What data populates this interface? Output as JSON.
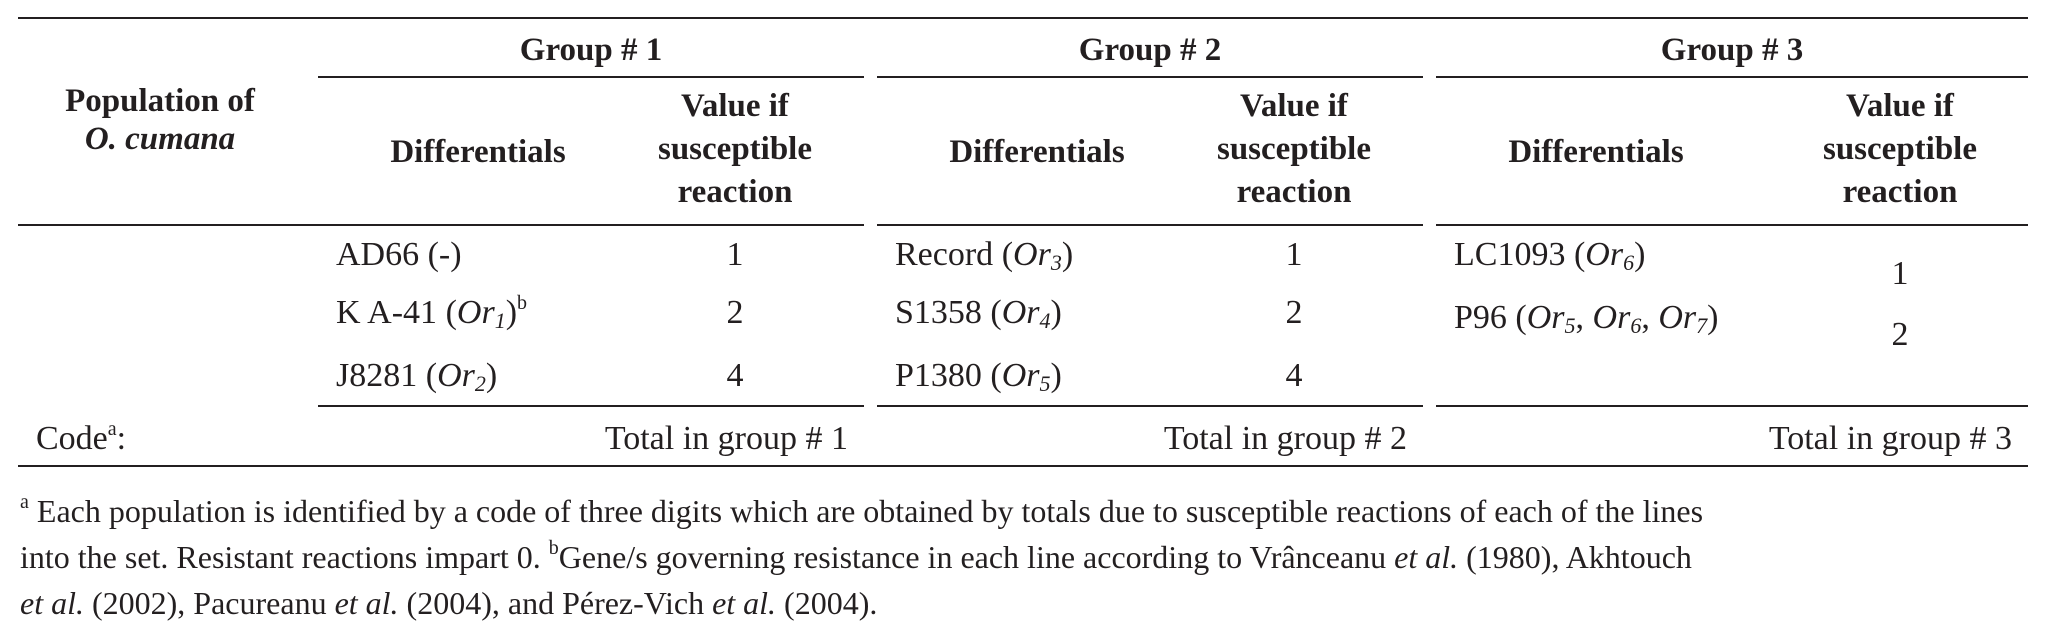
{
  "table": {
    "row_header": {
      "line1": "Population of",
      "line2": "O. cumana"
    },
    "groups": [
      {
        "title": "Group # 1",
        "col_differentials": "Differentials",
        "col_value": [
          "Value if",
          "susceptible",
          "reaction"
        ],
        "rows": [
          {
            "name": "AD66",
            "gene_prefix": " (-)",
            "gene": "",
            "value": "1"
          },
          {
            "name": "K A-41",
            "gene": "Or",
            "gene_sub": "1",
            "gene_sup": "b",
            "value": "2"
          },
          {
            "name": "J8281",
            "gene": "Or",
            "gene_sub": "2",
            "value": "4"
          }
        ],
        "total_label": "Total in group # 1"
      },
      {
        "title": "Group # 2",
        "col_differentials": "Differentials",
        "col_value": [
          "Value if",
          "susceptible",
          "reaction"
        ],
        "rows": [
          {
            "name": "Record",
            "gene": "Or",
            "gene_sub": "3",
            "value": "1"
          },
          {
            "name": "S1358",
            "gene": "Or",
            "gene_sub": "4",
            "value": "2"
          },
          {
            "name": "P1380",
            "gene": "Or",
            "gene_sub": "5",
            "value": "4"
          }
        ],
        "total_label": "Total in group # 2"
      },
      {
        "title": "Group # 3",
        "col_differentials": "Differentials",
        "col_value": [
          "Value if",
          "susceptible",
          "reaction"
        ],
        "rows": [
          {
            "name": "LC1093",
            "gene": "Or",
            "gene_sub": "6",
            "value": "1"
          },
          {
            "name": "P96",
            "genes": [
              {
                "gene": "Or",
                "gene_sub": "5"
              },
              {
                "gene": "Or",
                "gene_sub": "6"
              },
              {
                "gene": "Or",
                "gene_sub": "7"
              }
            ],
            "value": "2"
          }
        ],
        "total_label": "Total in group # 3"
      }
    ],
    "code_label": "Code",
    "code_sup": "a",
    "code_colon": ":"
  },
  "footnote": {
    "a_mark": "a",
    "a_text_1": " Each population is identified by a code of three digits which are obtained by totals due to susceptible reactions of each of the lines",
    "a_text_2": "into the set. Resistant reactions impart 0. ",
    "b_mark": "b",
    "b_text_1": "Gene/s governing resistance in each line according to Vrânceanu ",
    "etal": "et al.",
    "b_year_1": " (1980), Akhtouch",
    "b_year_2": " (2002), Pacureanu ",
    "b_year_3": " (2004), and Pérez-Vich ",
    "b_year_4": " (2004)."
  }
}
